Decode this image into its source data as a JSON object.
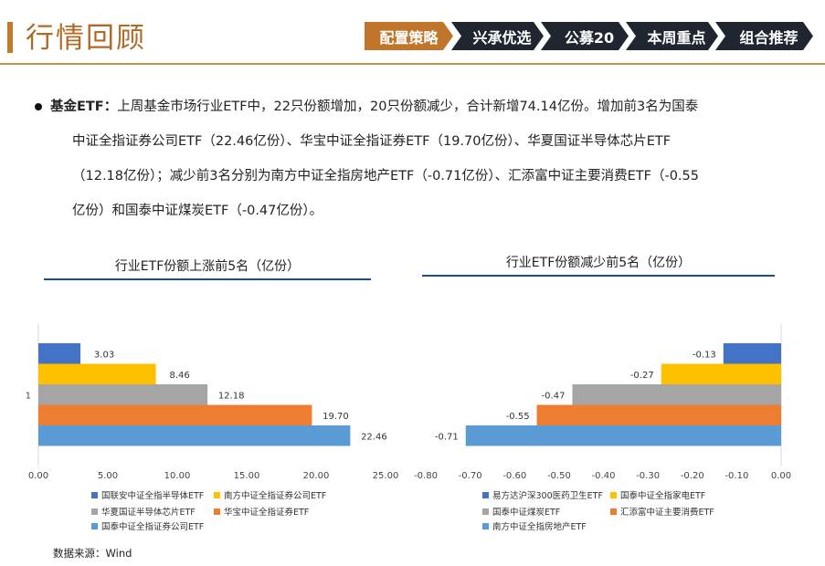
{
  "header": {
    "title": "行情回顾",
    "nav": [
      "配置策略",
      "兴承优选",
      "公募20",
      "本周重点",
      "组合推荐"
    ]
  },
  "paragraph": {
    "lead": "基金ETF：",
    "line1": "上周基金市场行业ETF中，22只份额增加，20只份额减少，合计新增74.14亿份。增加前3名为国泰",
    "line2": "中证全指证券公司ETF（22.46亿份）、华宝中证全指证券ETF（19.70亿份）、华夏国证半导体芯片ETF",
    "line3": "（12.18亿份）；减少前3名分别为南方中证全指房地产ETF（-0.71亿份）、汇添富中证主要消费ETF（-0.55",
    "line4": "亿份）和国泰中证煤炭ETF（-0.47亿份）。"
  },
  "source": "数据来源：Wind",
  "chart_data": [
    {
      "type": "bar",
      "orientation": "horizontal",
      "title": "行业ETF份额上涨前5名（亿份）",
      "category_label": "1",
      "series": [
        {
          "name": "国联安中证全指半导体ETF",
          "value": 3.03,
          "color": "#4472c4"
        },
        {
          "name": "南方中证全指证券公司ETF",
          "value": 8.46,
          "color": "#ffc000"
        },
        {
          "name": "华夏国证半导体芯片ETF",
          "value": 12.18,
          "color": "#a5a5a5"
        },
        {
          "name": "华宝中证全指证券ETF",
          "value": 19.7,
          "color": "#ed7d31"
        },
        {
          "name": "国泰中证全指证券公司ETF",
          "value": 22.46,
          "color": "#5b9bd5"
        }
      ],
      "data_labels": [
        "3.03",
        "8.46",
        "12.18",
        "19.70",
        "22.46"
      ],
      "xlim": [
        0,
        25
      ],
      "ticks": [
        "0.00",
        "5.00",
        "10.00",
        "15.00",
        "20.00",
        "25.00"
      ],
      "tick_values": [
        0,
        5,
        10,
        15,
        20,
        25
      ],
      "legend_position": "bottom"
    },
    {
      "type": "bar",
      "orientation": "horizontal",
      "title": "行业ETF份额减少前5名（亿份）",
      "series": [
        {
          "name": "易方达沪深300医药卫生ETF",
          "value": -0.13,
          "color": "#4472c4"
        },
        {
          "name": "国泰中证全指家电ETF",
          "value": -0.27,
          "color": "#ffc000"
        },
        {
          "name": "国泰中证煤炭ETF",
          "value": -0.47,
          "color": "#a5a5a5"
        },
        {
          "name": "汇添富中证主要消费ETF",
          "value": -0.55,
          "color": "#ed7d31"
        },
        {
          "name": "南方中证全指房地产ETF",
          "value": -0.71,
          "color": "#5b9bd5"
        }
      ],
      "data_labels": [
        "-0.13",
        "-0.27",
        "-0.47",
        "-0.55",
        "-0.71"
      ],
      "xlim": [
        -0.8,
        0
      ],
      "ticks": [
        "-0.80",
        "-0.70",
        "-0.60",
        "-0.50",
        "-0.40",
        "-0.30",
        "-0.20",
        "-0.10",
        "0.00"
      ],
      "tick_values": [
        -0.8,
        -0.7,
        -0.6,
        -0.5,
        -0.4,
        -0.3,
        -0.2,
        -0.1,
        0
      ],
      "legend_position": "bottom"
    }
  ]
}
